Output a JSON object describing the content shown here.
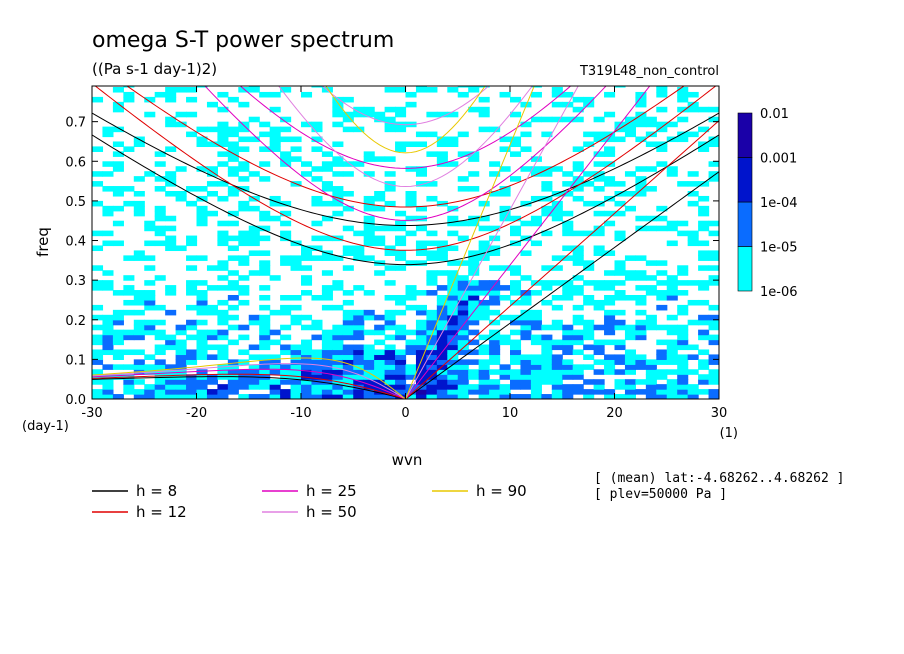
{
  "chart_data": {
    "type": "heatmap",
    "title": "omega S-T power spectrum",
    "subtitle": "((Pa s-1 day-1)2)",
    "run_label": "T319L48_non_control",
    "xlabel": "wvn",
    "ylabel": "freq",
    "x_unit_label": "(1)",
    "y_unit_label": "(day-1)",
    "xlim": [
      -30,
      30
    ],
    "ylim": [
      0,
      0.79
    ],
    "x_ticks": [
      -30,
      -20,
      -10,
      0,
      10,
      20,
      30
    ],
    "y_ticks": [
      0.0,
      0.1,
      0.2,
      0.3,
      0.4,
      0.5,
      0.6,
      0.7
    ],
    "x_tick_labels": [
      "-30",
      "-20",
      "-10",
      "0",
      "10",
      "20",
      "30"
    ],
    "y_tick_labels": [
      "0.0",
      "0.1",
      "0.2",
      "0.3",
      "0.4",
      "0.5",
      "0.6",
      "0.7"
    ],
    "colorbar": {
      "levels": [
        "1e-06",
        "1e-05",
        "1e-04",
        "0.001",
        "0.01"
      ],
      "colors": [
        "#00ffff",
        "#0a6cff",
        "#0014cc",
        "#1a00a8"
      ]
    },
    "equivalent_depth_legend": [
      {
        "label": "h =  8",
        "color": "#000000"
      },
      {
        "label": "h = 12",
        "color": "#e00000"
      },
      {
        "label": "h = 25",
        "color": "#e000c0"
      },
      {
        "label": "h = 50",
        "color": "#e080e0"
      },
      {
        "label": "h = 90",
        "color": "#e8c800"
      }
    ],
    "curves": [
      {
        "h": 8,
        "color": "#000000"
      },
      {
        "h": 12,
        "color": "#e00000"
      },
      {
        "h": 25,
        "color": "#e000c0"
      },
      {
        "h": 50,
        "color": "#e080e0"
      },
      {
        "h": 90,
        "color": "#e8c800"
      }
    ],
    "annotations": [
      "[ (mean) lat:-4.68262..4.68262 ]",
      "[ plev=50000 Pa ]"
    ]
  }
}
